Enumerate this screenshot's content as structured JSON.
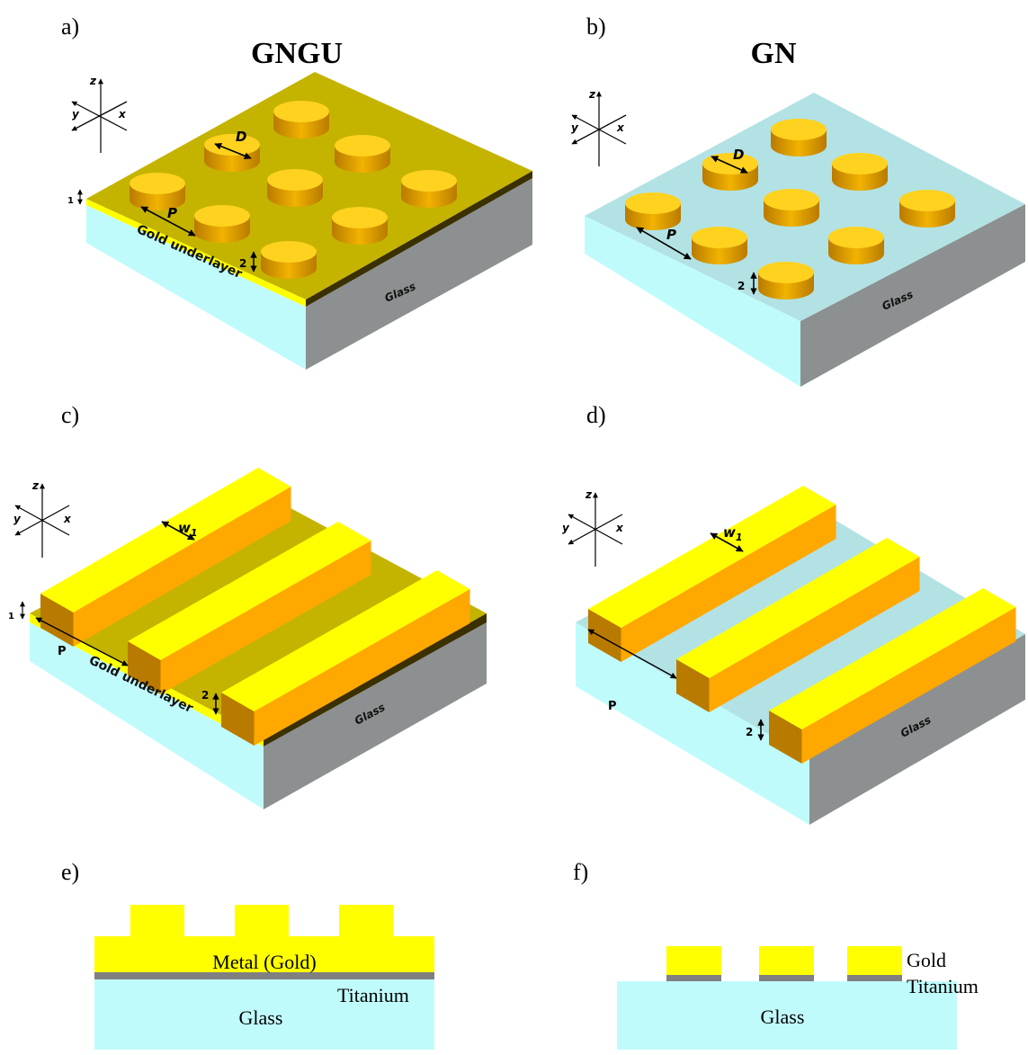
{
  "panels": {
    "a": {
      "letter": "a)",
      "title": "GNGU",
      "label_D": "D",
      "label_P": "P",
      "label_1": "1",
      "label_2": "2",
      "underlayer": "Gold underlayer",
      "glass": "Glass"
    },
    "b": {
      "letter": "b)",
      "title": "GN",
      "label_D": "D",
      "label_P": "P",
      "label_2": "2",
      "glass": "Glass"
    },
    "c": {
      "letter": "c)",
      "label_w": "w",
      "label_w_sub": "1",
      "label_P": "P",
      "label_1": "1",
      "label_2": "2",
      "underlayer": "Gold underlayer",
      "glass": "Glass"
    },
    "d": {
      "letter": "d)",
      "label_w": "w",
      "label_w_sub": "1",
      "label_P": "P",
      "label_2": "2",
      "glass": "Glass"
    },
    "e": {
      "letter": "e)",
      "metal": "Metal (Gold)",
      "titanium": "Titanium",
      "glass": "Glass"
    },
    "f": {
      "letter": "f)",
      "gold": "Gold",
      "titanium": "Titanium",
      "glass": "Glass"
    }
  },
  "axes": {
    "z": "z",
    "y": "y",
    "x": "x"
  },
  "colors": {
    "gold_underlayer": "#c4b400",
    "gold_top": "#ffd21f",
    "gold_side": "#d89500",
    "bright_yellow": "#ffff00",
    "glass_top": "#b3e2e4",
    "glass_front": "#c0fbfc",
    "glass_side": "#8c9090",
    "titanium": "#808080"
  }
}
